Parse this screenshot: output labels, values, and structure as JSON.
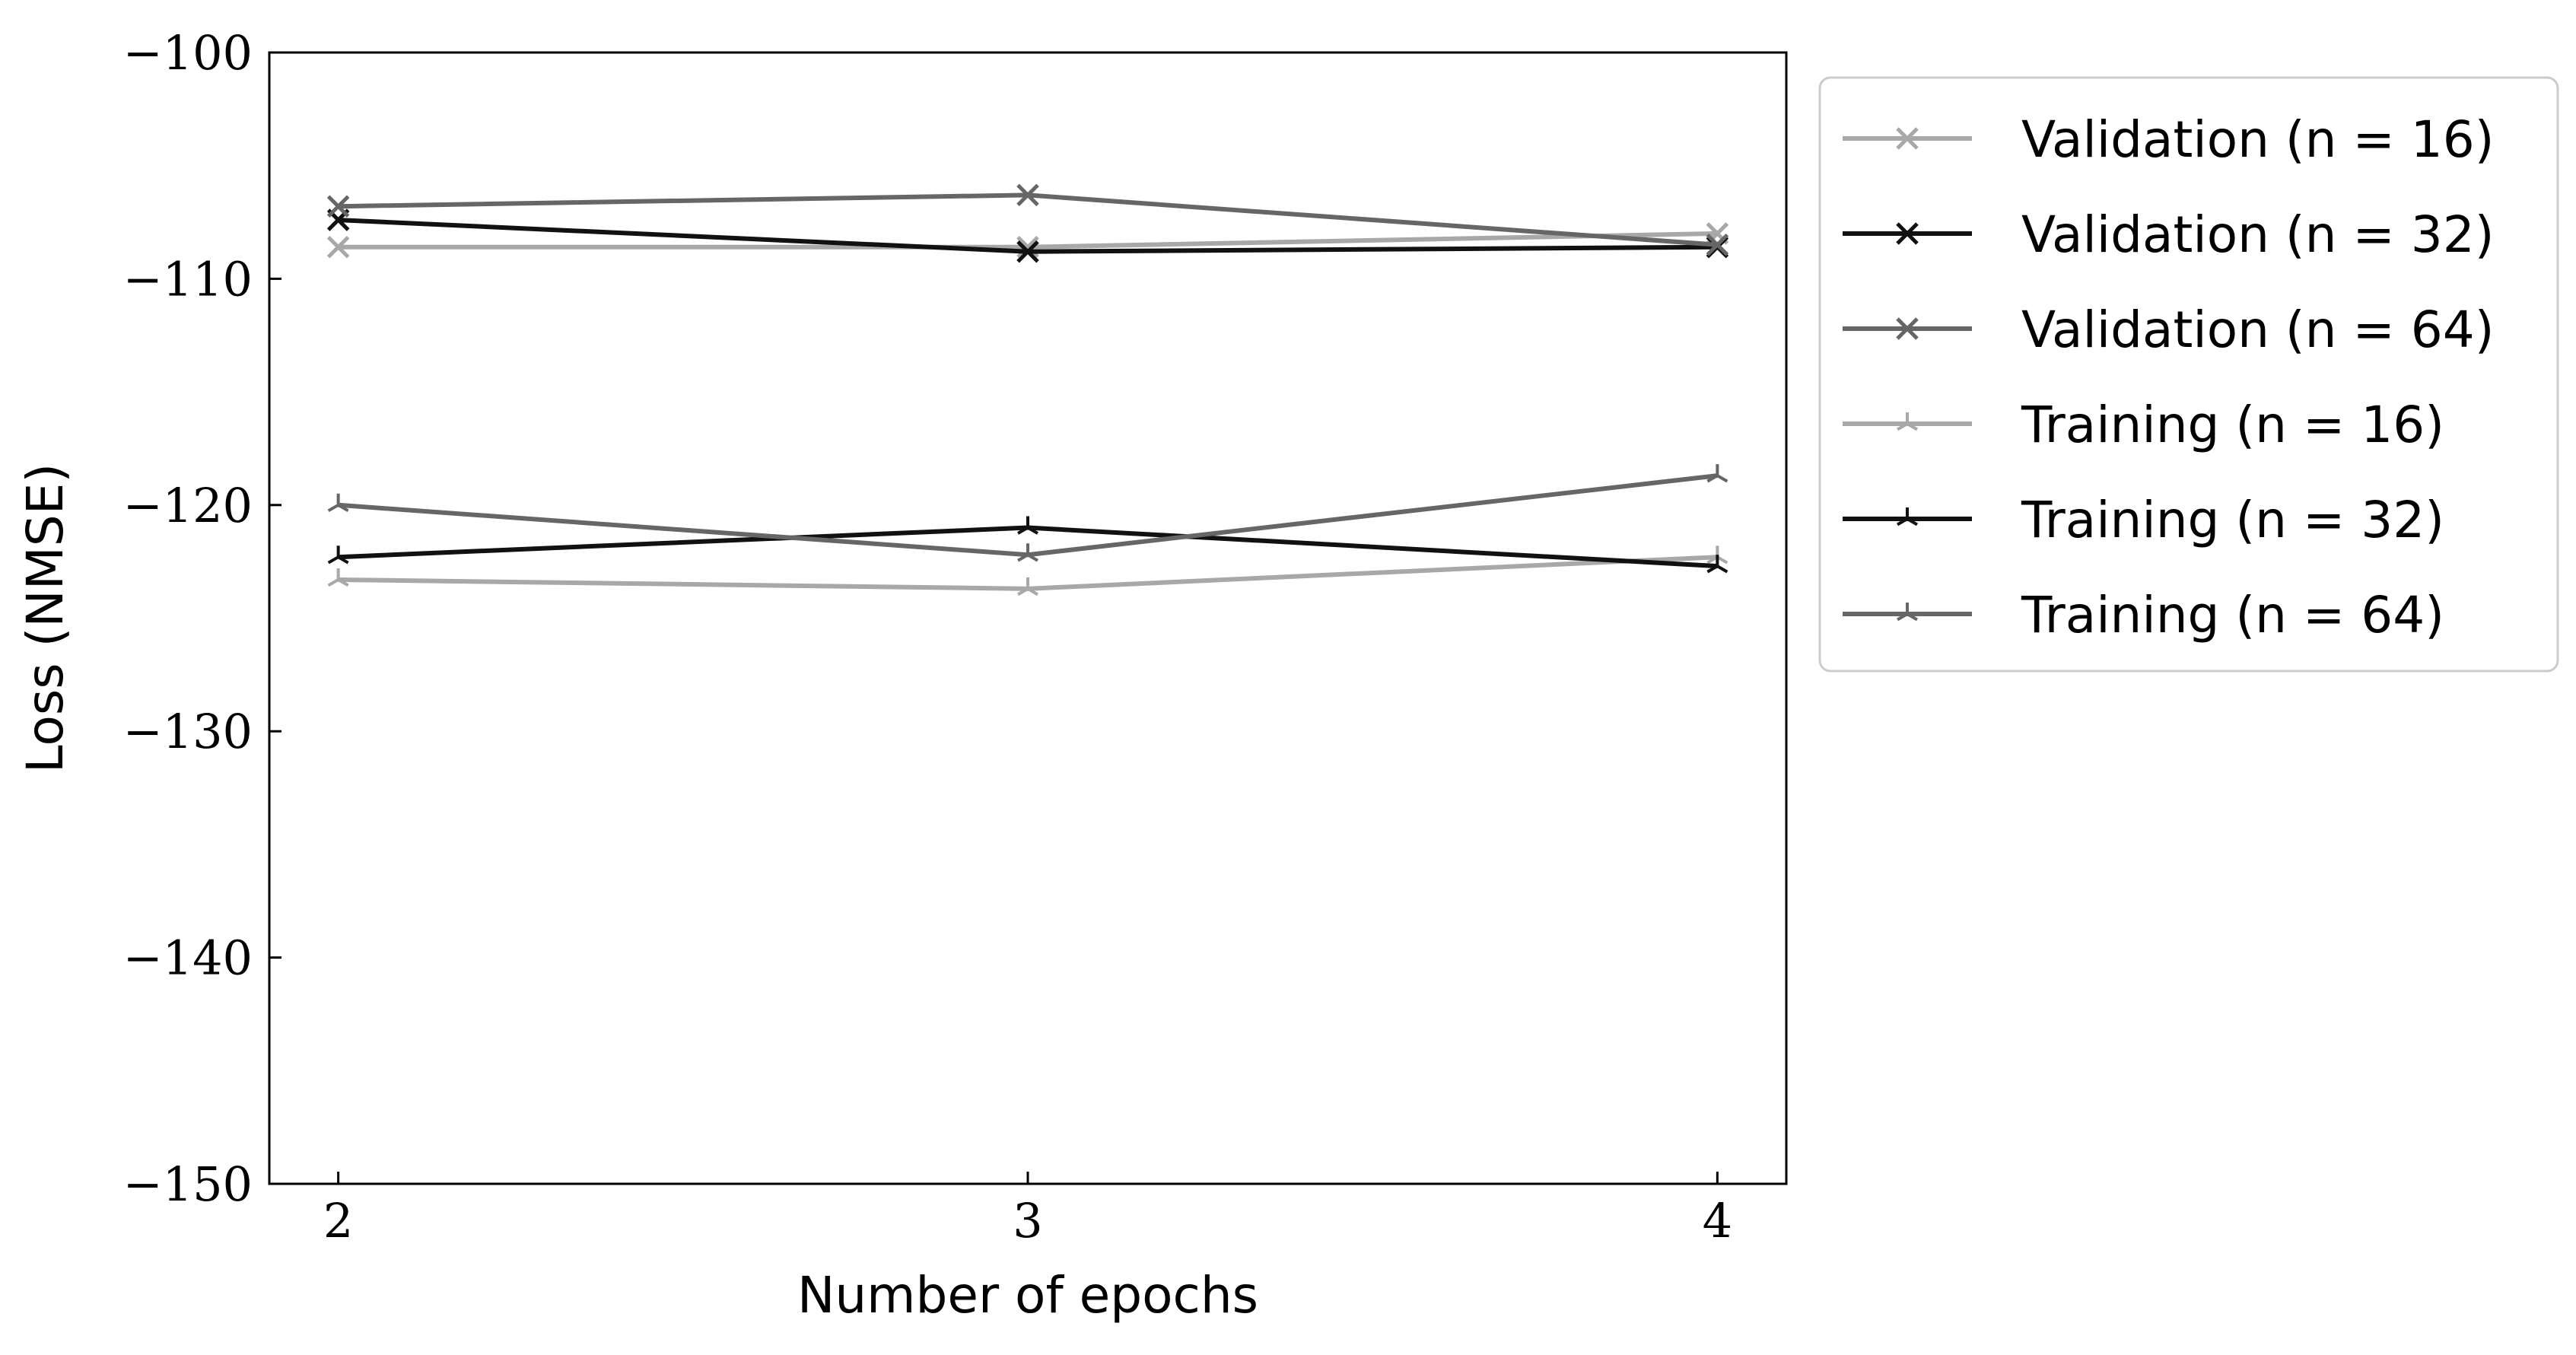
{
  "chart_data": {
    "type": "line",
    "xlabel": "Number of epochs",
    "ylabel": "Loss (NMSE)",
    "x": [
      2,
      3,
      4
    ],
    "x_ticks": [
      2,
      3,
      4
    ],
    "x_tick_labels": [
      "2",
      "3",
      "4"
    ],
    "xlim": [
      1.9,
      4.1
    ],
    "ylim": [
      -150,
      -100
    ],
    "y_ticks": [
      -100,
      -110,
      -120,
      -130,
      -140,
      -150
    ],
    "y_tick_labels": [
      "−100",
      "−110",
      "−120",
      "−130",
      "−140",
      "−150"
    ],
    "grid": false,
    "legend_position": "outside right, top",
    "series": [
      {
        "name": "Validation (n = 16)",
        "values": [
          -108.6,
          -108.6,
          -108.0
        ],
        "color": "#a8a8a8",
        "marker": "x"
      },
      {
        "name": "Validation (n = 32)",
        "values": [
          -107.4,
          -108.8,
          -108.6
        ],
        "color": "#111111",
        "marker": "x"
      },
      {
        "name": "Validation (n = 64)",
        "values": [
          -106.8,
          -106.3,
          -108.5
        ],
        "color": "#666666",
        "marker": "x"
      },
      {
        "name": "Training (n = 16)",
        "values": [
          -123.3,
          -123.7,
          -122.3
        ],
        "color": "#a8a8a8",
        "marker": "tri"
      },
      {
        "name": "Training (n = 32)",
        "values": [
          -122.3,
          -121.0,
          -122.7
        ],
        "color": "#111111",
        "marker": "tri"
      },
      {
        "name": "Training (n = 64)",
        "values": [
          -120.0,
          -122.2,
          -118.7
        ],
        "color": "#666666",
        "marker": "tri"
      }
    ]
  }
}
